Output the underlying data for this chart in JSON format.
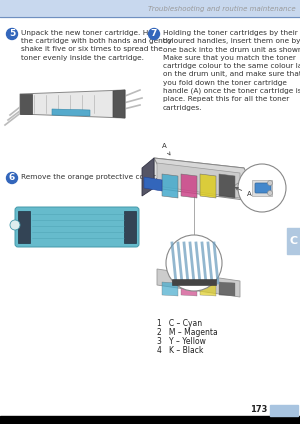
{
  "bg_color": "#ffffff",
  "header_bg": "#c8d8ee",
  "header_line_color": "#7090c0",
  "header_text": "Troubleshooting and routine maintenance",
  "header_text_color": "#999999",
  "header_text_fontsize": 5.0,
  "footer_bg": "#000000",
  "page_number": "173",
  "page_num_box_color": "#a8c4e0",
  "page_number_fontsize": 6,
  "side_tab_color": "#b0c8e0",
  "side_tab_letter": "C",
  "side_tab_fontsize": 8,
  "step_circle_color": "#3366bb",
  "text_color": "#333333",
  "text_fontsize": 5.3,
  "step5_num": "5",
  "step5_text": "Unpack the new toner cartridge. Hold\nthe cartridge with both hands and gently\nshake it five or six times to spread the\ntoner evenly inside the cartridge.",
  "step6_num": "6",
  "step6_text": "Remove the orange protective cover.",
  "step7_num": "7",
  "step7_text": "Holding the toner cartridges by their\ncoloured handles, insert them one by\none back into the drum unit as shown.\nMake sure that you match the toner\ncartridge colour to the same colour label\non the drum unit, and make sure that\nyou fold down the toner cartridge\nhandle (A) once the toner cartridge is in\nplace. Repeat this for all the toner\ncartridges.",
  "legend_lines": [
    "1   C – Cyan",
    "2   M – Magenta",
    "3   Y – Yellow",
    "4   K – Black"
  ],
  "legend_fontsize": 5.5,
  "legend_color": "#222222"
}
